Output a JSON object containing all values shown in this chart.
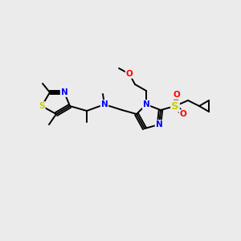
{
  "background_color": "#ebebeb",
  "atom_colors": {
    "C": "#000000",
    "N": "#0000ff",
    "S": "#cccc00",
    "O": "#ff0000"
  },
  "bond_color": "#000000",
  "font_size": 7.5,
  "figsize": [
    3.0,
    3.0
  ],
  "dpi": 100,
  "lw": 1.4
}
